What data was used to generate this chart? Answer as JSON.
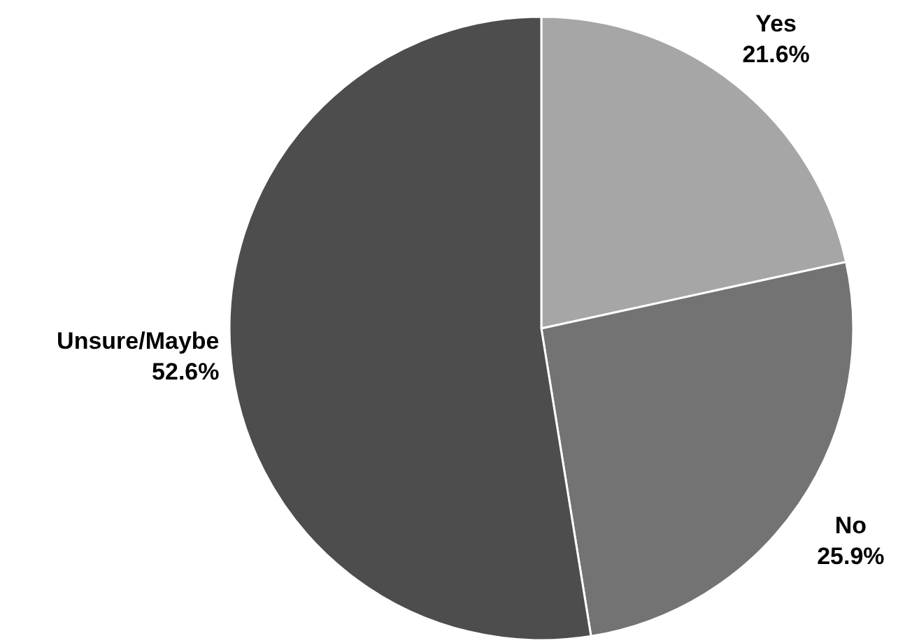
{
  "chart_data": {
    "type": "pie",
    "categories": [
      "Yes",
      "No",
      "Unsure/Maybe"
    ],
    "values": [
      21.6,
      25.9,
      52.6
    ],
    "colors": [
      "#a6a6a6",
      "#737373",
      "#4d4d4d"
    ],
    "value_labels": [
      "21.6%",
      "25.9%",
      "52.6%"
    ]
  }
}
